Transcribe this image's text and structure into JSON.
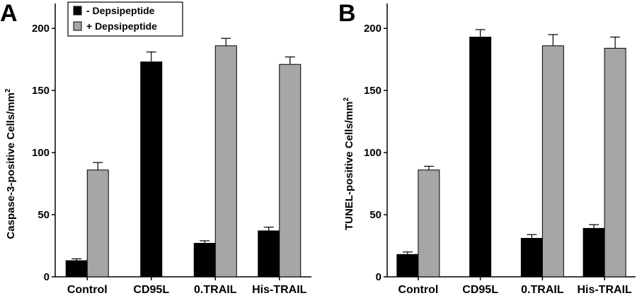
{
  "chart_data": [
    {
      "type": "bar",
      "panel": "A",
      "categories": [
        "Control",
        "CD95L",
        "0.TRAIL",
        "His-TRAIL"
      ],
      "series": [
        {
          "name": "- Depsipeptide",
          "color": "#000000",
          "values": [
            13,
            173,
            27,
            37
          ],
          "errors": [
            1.5,
            8,
            2,
            3
          ]
        },
        {
          "name": "+ Depsipeptide",
          "color": "#a6a6a6",
          "values": [
            86,
            null,
            186,
            171
          ],
          "errors": [
            6,
            null,
            6,
            6
          ]
        }
      ],
      "ylabel": "Caspase-3-positive Cells/mm",
      "ylabel_sup": "2",
      "ylim": [
        0,
        220
      ],
      "yticks": [
        0,
        50,
        100,
        150,
        200
      ],
      "legend": "top-left"
    },
    {
      "type": "bar",
      "panel": "B",
      "categories": [
        "Control",
        "CD95L",
        "0.TRAIL",
        "His-TRAIL"
      ],
      "series": [
        {
          "name": "- Depsipeptide",
          "color": "#000000",
          "values": [
            18,
            193,
            31,
            39
          ],
          "errors": [
            2,
            6,
            3,
            3
          ]
        },
        {
          "name": "+ Depsipeptide",
          "color": "#a6a6a6",
          "values": [
            86,
            null,
            186,
            184
          ],
          "errors": [
            3,
            null,
            9,
            9
          ]
        }
      ],
      "ylabel": "TUNEL-positive Cells/mm",
      "ylabel_sup": "2",
      "ylim": [
        0,
        220
      ],
      "yticks": [
        0,
        50,
        100,
        150,
        200
      ],
      "legend": "none"
    }
  ]
}
